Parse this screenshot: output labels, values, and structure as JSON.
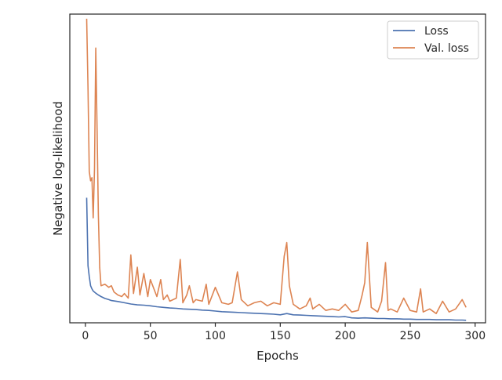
{
  "chart_data": {
    "type": "line",
    "xlabel": "Epochs",
    "ylabel": "Negative log-likelihood",
    "xlim": [
      -12,
      308
    ],
    "ylim": [
      0,
      1
    ],
    "x_ticks": [
      0,
      50,
      100,
      150,
      200,
      250,
      300
    ],
    "y_ticks_visible": false,
    "grid": false,
    "legend_position": "top-right",
    "series": [
      {
        "name": "Loss",
        "color": "#4c72b0",
        "x": [
          1,
          2,
          3,
          4,
          5,
          6,
          8,
          10,
          12,
          15,
          18,
          20,
          25,
          30,
          35,
          40,
          45,
          50,
          55,
          60,
          65,
          70,
          75,
          80,
          85,
          90,
          95,
          100,
          105,
          110,
          115,
          120,
          125,
          130,
          135,
          140,
          145,
          150,
          155,
          160,
          165,
          170,
          175,
          180,
          185,
          190,
          195,
          200,
          205,
          210,
          215,
          220,
          225,
          230,
          235,
          240,
          245,
          250,
          255,
          260,
          265,
          270,
          275,
          280,
          285,
          290,
          293
        ],
        "values": [
          0.405,
          0.185,
          0.15,
          0.12,
          0.11,
          0.103,
          0.096,
          0.09,
          0.085,
          0.079,
          0.075,
          0.072,
          0.069,
          0.065,
          0.061,
          0.058,
          0.057,
          0.055,
          0.052,
          0.05,
          0.048,
          0.047,
          0.045,
          0.044,
          0.043,
          0.041,
          0.04,
          0.038,
          0.036,
          0.035,
          0.034,
          0.033,
          0.032,
          0.031,
          0.03,
          0.029,
          0.028,
          0.026,
          0.03,
          0.026,
          0.025,
          0.024,
          0.023,
          0.022,
          0.021,
          0.02,
          0.019,
          0.02,
          0.016,
          0.015,
          0.016,
          0.015,
          0.014,
          0.014,
          0.013,
          0.013,
          0.012,
          0.012,
          0.011,
          0.011,
          0.011,
          0.01,
          0.01,
          0.01,
          0.009,
          0.009,
          0.008
        ]
      },
      {
        "name": "Val. loss",
        "color": "#dd8452",
        "x": [
          1,
          2,
          3,
          4,
          5,
          6,
          7,
          8,
          9,
          10,
          11,
          12,
          15,
          18,
          20,
          22,
          25,
          28,
          30,
          33,
          35,
          37,
          40,
          42,
          45,
          48,
          50,
          55,
          58,
          60,
          63,
          65,
          70,
          73,
          75,
          78,
          80,
          83,
          85,
          90,
          93,
          95,
          100,
          105,
          110,
          113,
          117,
          120,
          125,
          130,
          135,
          140,
          145,
          150,
          153,
          155,
          157,
          160,
          165,
          170,
          173,
          175,
          180,
          185,
          190,
          195,
          200,
          205,
          210,
          213,
          215,
          217,
          220,
          225,
          228,
          231,
          233,
          235,
          240,
          245,
          250,
          255,
          258,
          260,
          265,
          270,
          275,
          280,
          285,
          290,
          293
        ],
        "values": [
          0.985,
          0.76,
          0.49,
          0.46,
          0.47,
          0.34,
          0.5,
          0.89,
          0.62,
          0.35,
          0.18,
          0.12,
          0.125,
          0.115,
          0.12,
          0.1,
          0.09,
          0.085,
          0.095,
          0.08,
          0.22,
          0.095,
          0.18,
          0.09,
          0.16,
          0.085,
          0.14,
          0.085,
          0.14,
          0.075,
          0.09,
          0.07,
          0.08,
          0.205,
          0.065,
          0.09,
          0.12,
          0.065,
          0.075,
          0.07,
          0.125,
          0.06,
          0.115,
          0.065,
          0.06,
          0.065,
          0.165,
          0.075,
          0.055,
          0.065,
          0.07,
          0.055,
          0.065,
          0.06,
          0.215,
          0.26,
          0.12,
          0.06,
          0.045,
          0.055,
          0.08,
          0.045,
          0.06,
          0.04,
          0.045,
          0.04,
          0.06,
          0.035,
          0.04,
          0.09,
          0.13,
          0.26,
          0.05,
          0.035,
          0.07,
          0.195,
          0.04,
          0.045,
          0.035,
          0.08,
          0.04,
          0.035,
          0.11,
          0.035,
          0.045,
          0.03,
          0.07,
          0.035,
          0.045,
          0.075,
          0.05
        ]
      }
    ]
  }
}
